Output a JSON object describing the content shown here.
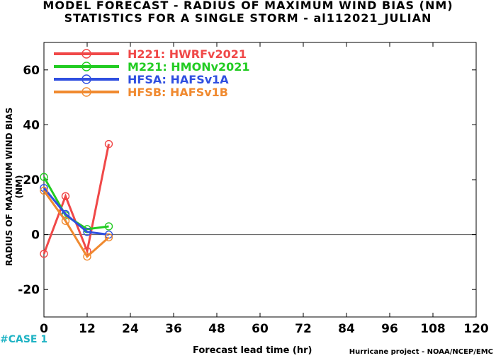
{
  "header": {
    "title": "MODEL FORECAST - RADIUS OF MAXIMUM WIND BIAS (NM)",
    "subtitle": "STATISTICS FOR A SINGLE STORM - al112021_JULIAN"
  },
  "footer": {
    "case_label": "#CASE  1",
    "credit": "Hurricane project - NOAA/NCEP/EMC"
  },
  "chart_data": {
    "type": "line",
    "title": "MODEL FORECAST - RADIUS OF MAXIMUM WIND BIAS (NM)",
    "subtitle": "STATISTICS FOR A SINGLE STORM - al112021_JULIAN",
    "xlabel": "Forecast lead time (hr)",
    "ylabel": "RADIUS OF MAXIMUM WIND BIAS (NM)",
    "xlim": [
      0,
      120
    ],
    "ylim": [
      -30,
      70
    ],
    "xticks": [
      0,
      12,
      24,
      36,
      48,
      60,
      72,
      84,
      96,
      108,
      120
    ],
    "yticks": [
      -20,
      0,
      20,
      40,
      60
    ],
    "x": [
      0,
      6,
      12,
      18
    ],
    "legend_position": "top-left",
    "zero_line": true,
    "series": [
      {
        "name": "H221: HWRFv2021",
        "color": "#f04848",
        "values": [
          -7,
          14,
          -6,
          33
        ]
      },
      {
        "name": "M221: HMONv2021",
        "color": "#22cc22",
        "values": [
          21,
          7,
          2,
          3
        ]
      },
      {
        "name": "HFSA: HAFSv1A",
        "color": "#2f4fe0",
        "values": [
          17,
          7.5,
          1,
          0
        ]
      },
      {
        "name": "HFSB: HAFSv1B",
        "color": "#f08a30",
        "values": [
          16,
          5,
          -8,
          -1
        ]
      }
    ]
  }
}
